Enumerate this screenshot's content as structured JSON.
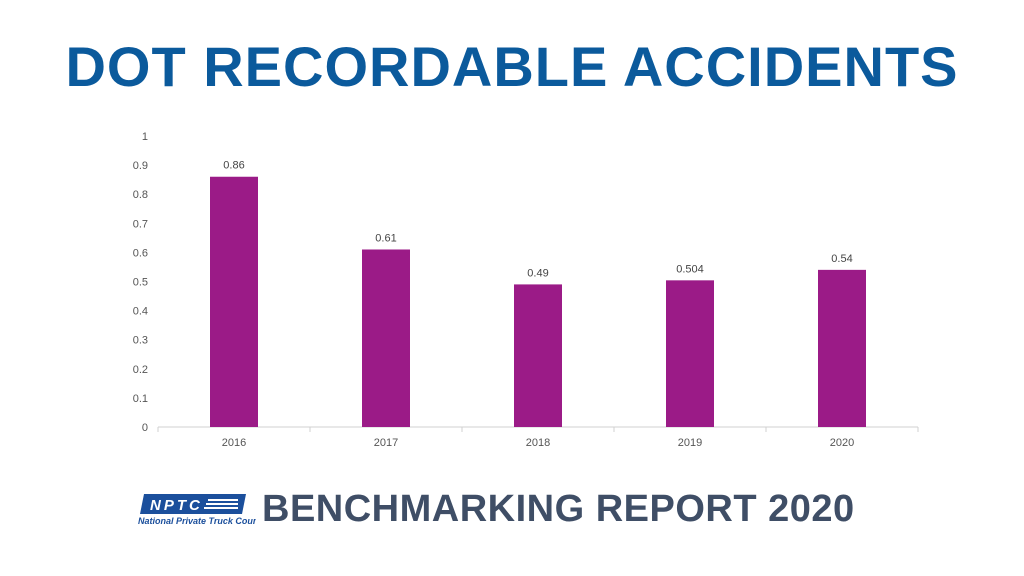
{
  "title": "DOT RECORDABLE ACCIDENTS",
  "footer": {
    "text": "BENCHMARKING REPORT 2020",
    "logo_text": "NPTC",
    "logo_subtext": "National Private Truck Council"
  },
  "colors": {
    "title": "#0b5a9c",
    "bar": "#9b1b87",
    "footer": "#3f4e66",
    "logo": "#1b4f9c"
  },
  "chart_data": {
    "type": "bar",
    "title": "",
    "categories": [
      "2016",
      "2017",
      "2018",
      "2019",
      "2020"
    ],
    "values": [
      0.86,
      0.61,
      0.49,
      0.504,
      0.54
    ],
    "data_labels": [
      "0.86",
      "0.61",
      "0.49",
      "0.504",
      "0.54"
    ],
    "ylim": [
      0,
      1
    ],
    "yticks": [
      "0",
      "0.1",
      "0.2",
      "0.3",
      "0.4",
      "0.5",
      "0.6",
      "0.7",
      "0.8",
      "0.9",
      "1"
    ],
    "grid": false,
    "legend": "none"
  }
}
